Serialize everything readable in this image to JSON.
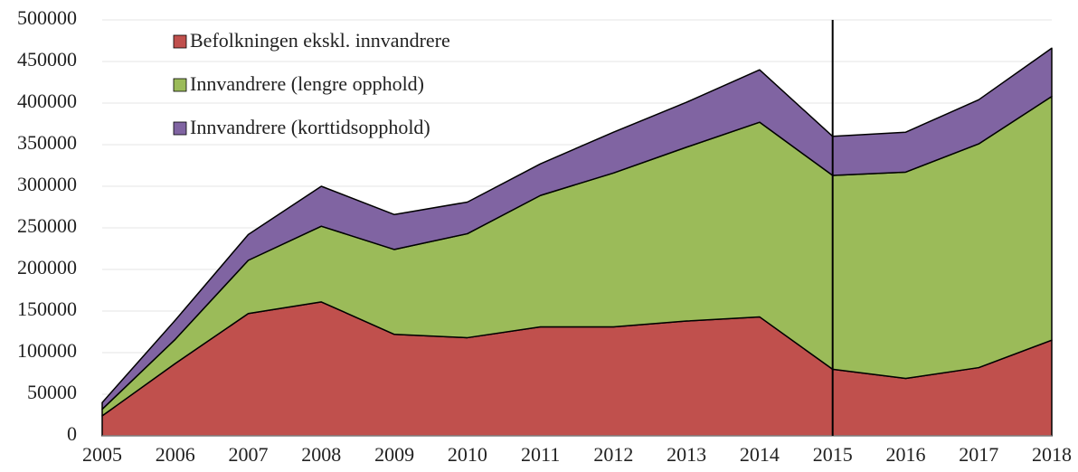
{
  "chart_data": {
    "type": "stacked_area",
    "categories": [
      "2005",
      "2006",
      "2007",
      "2008",
      "2009",
      "2010",
      "2011",
      "2012",
      "2013",
      "2014",
      "2015",
      "2016",
      "2017",
      "2018"
    ],
    "series": [
      {
        "name": "Befolkningen ekskl. innvandrere",
        "color": "#c0504d",
        "values": [
          24000,
          87000,
          147000,
          161000,
          122000,
          118000,
          131000,
          131000,
          138000,
          143000,
          80000,
          69000,
          82000,
          115000
        ]
      },
      {
        "name": "Innvandrere (lengre opphold)",
        "color": "#9bbb59",
        "values": [
          8000,
          29000,
          64000,
          91000,
          102000,
          125000,
          158000,
          185000,
          209000,
          234000,
          233000,
          248000,
          269000,
          293000
        ]
      },
      {
        "name": "Innvandrere (korttidsopphold)",
        "color": "#8064a2",
        "values": [
          8000,
          23000,
          31000,
          48000,
          42000,
          38000,
          38000,
          49000,
          54000,
          63000,
          47000,
          48000,
          53000,
          58000
        ]
      }
    ],
    "ylim": [
      0,
      500000
    ],
    "yticks": [
      0,
      50000,
      100000,
      150000,
      200000,
      250000,
      300000,
      350000,
      400000,
      450000,
      500000
    ],
    "grid": true,
    "legend": "top-left",
    "marker_category": "2015"
  }
}
